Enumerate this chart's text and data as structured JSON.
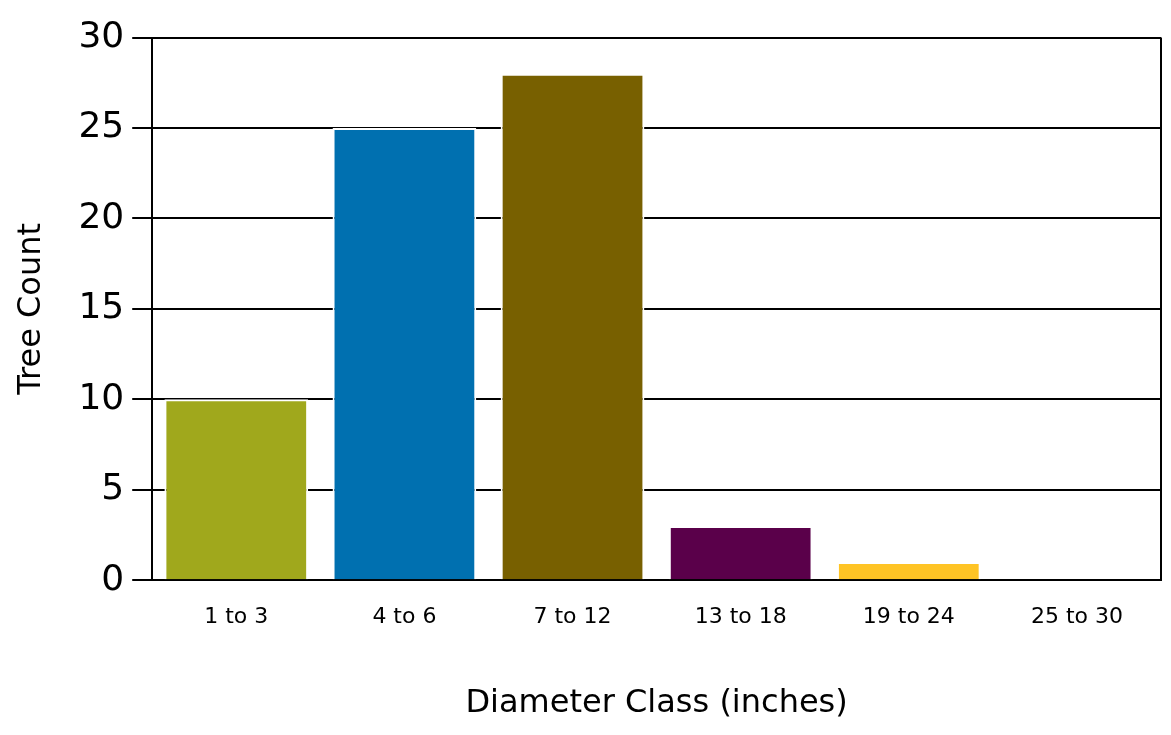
{
  "chart_data": {
    "type": "bar",
    "xlabel": "Diameter Class (inches)",
    "ylabel": "Tree Count",
    "categories": [
      "1 to 3",
      "4 to 6",
      "7 to 12",
      "13 to 18",
      "19 to 24",
      "25 to 30"
    ],
    "values": [
      10,
      25,
      28,
      3,
      1,
      null
    ],
    "colors": [
      "#a0a81c",
      "#0070b0",
      "#786000",
      "#5a004a",
      "#ffc425",
      "#cccccc"
    ],
    "ylim": [
      0,
      30
    ],
    "yticks": [
      0,
      5,
      10,
      15,
      20,
      25,
      30
    ],
    "grid": "y",
    "legend": false
  }
}
